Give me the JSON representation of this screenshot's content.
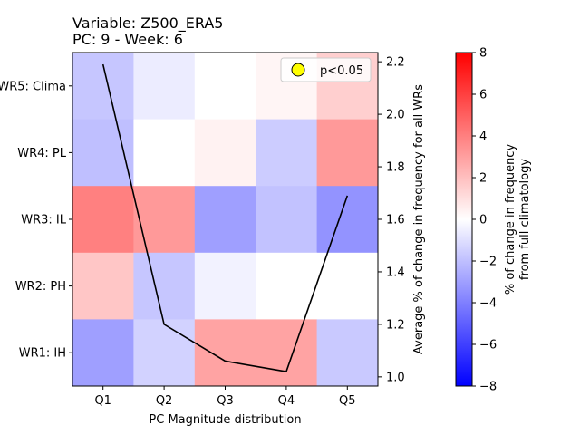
{
  "chart_data": {
    "type": "heatmap",
    "title_lines": [
      "Variable: Z500_ERA5",
      "PC: 9 - Week: 6"
    ],
    "xlabel": "PC Magnitude distribution",
    "x_categories": [
      "Q1",
      "Q2",
      "Q3",
      "Q4",
      "Q5"
    ],
    "y_categories_top_to_bottom": [
      "WR5: Clima",
      "WR4: PL",
      "WR3: IL",
      "WR2: PH",
      "WR1: IH"
    ],
    "heatmap_values_top_to_bottom": [
      [
        -1.8,
        -0.6,
        0.0,
        0.3,
        1.5
      ],
      [
        -2.0,
        0.0,
        0.4,
        -1.6,
        3.2
      ],
      [
        4.0,
        3.2,
        -3.0,
        -1.9,
        -3.4
      ],
      [
        1.8,
        -1.8,
        -0.4,
        0.0,
        0.0
      ],
      [
        -3.0,
        -1.4,
        2.9,
        2.9,
        -1.7
      ]
    ],
    "colorbar": {
      "label_lines": [
        "% of change in frequency",
        "from full climatology"
      ],
      "range": [
        -8,
        8
      ],
      "ticks": [
        -8,
        -6,
        -4,
        -2,
        0,
        2,
        4,
        6,
        8
      ],
      "colormap": "bwr",
      "low_color": "#0000ff",
      "mid_color": "#ffffff",
      "high_color": "#ff0000"
    },
    "line_series": {
      "x": [
        "Q1",
        "Q2",
        "Q3",
        "Q4",
        "Q5"
      ],
      "values": [
        2.19,
        1.2,
        1.06,
        1.02,
        1.69
      ],
      "color": "#000000",
      "y2label": "Average % of change in frequency for all WRs",
      "y2lim": [
        0.965,
        2.235
      ],
      "y2ticks": [
        1.0,
        1.2,
        1.4,
        1.6,
        1.8,
        2.0,
        2.2
      ]
    },
    "legend": {
      "placement": "top-right",
      "entries": [
        {
          "label": "p<0.05",
          "marker_color": "#ffff00"
        }
      ]
    }
  }
}
